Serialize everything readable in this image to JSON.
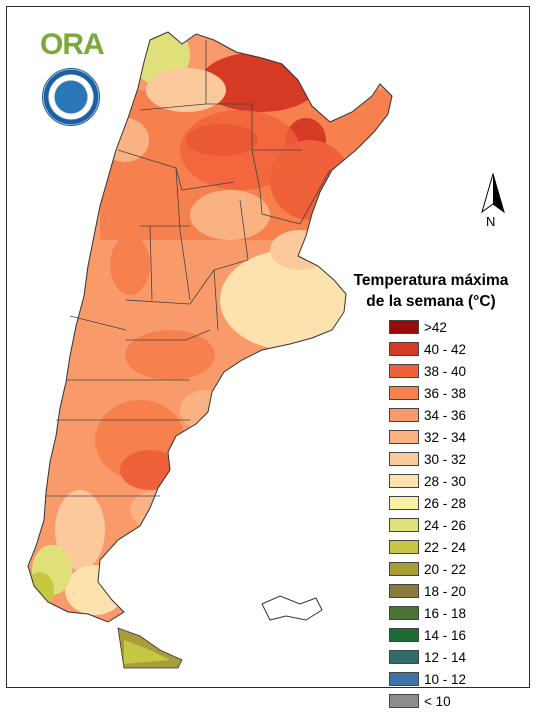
{
  "header": {
    "logo_text": "ORA",
    "seal_icon": "smn-seal-icon"
  },
  "compass": {
    "label": "N",
    "icon": "north-arrow-icon"
  },
  "legend": {
    "title_line1": "Temperatura máxima",
    "title_line2": "de la semana (°C)",
    "items": [
      {
        "label": ">42",
        "color": "#9a0a0a"
      },
      {
        "label": "40 - 42",
        "color": "#d43a24"
      },
      {
        "label": "38 - 40",
        "color": "#f0603a"
      },
      {
        "label": "36 - 38",
        "color": "#f7804f"
      },
      {
        "label": "34 - 36",
        "color": "#f99a6b"
      },
      {
        "label": "32 - 34",
        "color": "#fbb283"
      },
      {
        "label": "30 - 32",
        "color": "#fcc99c"
      },
      {
        "label": "28 - 30",
        "color": "#fde2ae"
      },
      {
        "label": "26 - 28",
        "color": "#f8f3a4"
      },
      {
        "label": "24 - 26",
        "color": "#e0e07a"
      },
      {
        "label": "22 - 24",
        "color": "#c6c843"
      },
      {
        "label": "20 - 22",
        "color": "#a89d38"
      },
      {
        "label": "18 - 20",
        "color": "#8b7a3c"
      },
      {
        "label": "16 - 18",
        "color": "#4d7437"
      },
      {
        "label": "14 - 16",
        "color": "#1e6b34"
      },
      {
        "label": "12 - 14",
        "color": "#2f6d6d"
      },
      {
        "label": "10 - 12",
        "color": "#3f74a8"
      },
      {
        "label": "< 10",
        "color": "#8c8c8c"
      }
    ]
  }
}
